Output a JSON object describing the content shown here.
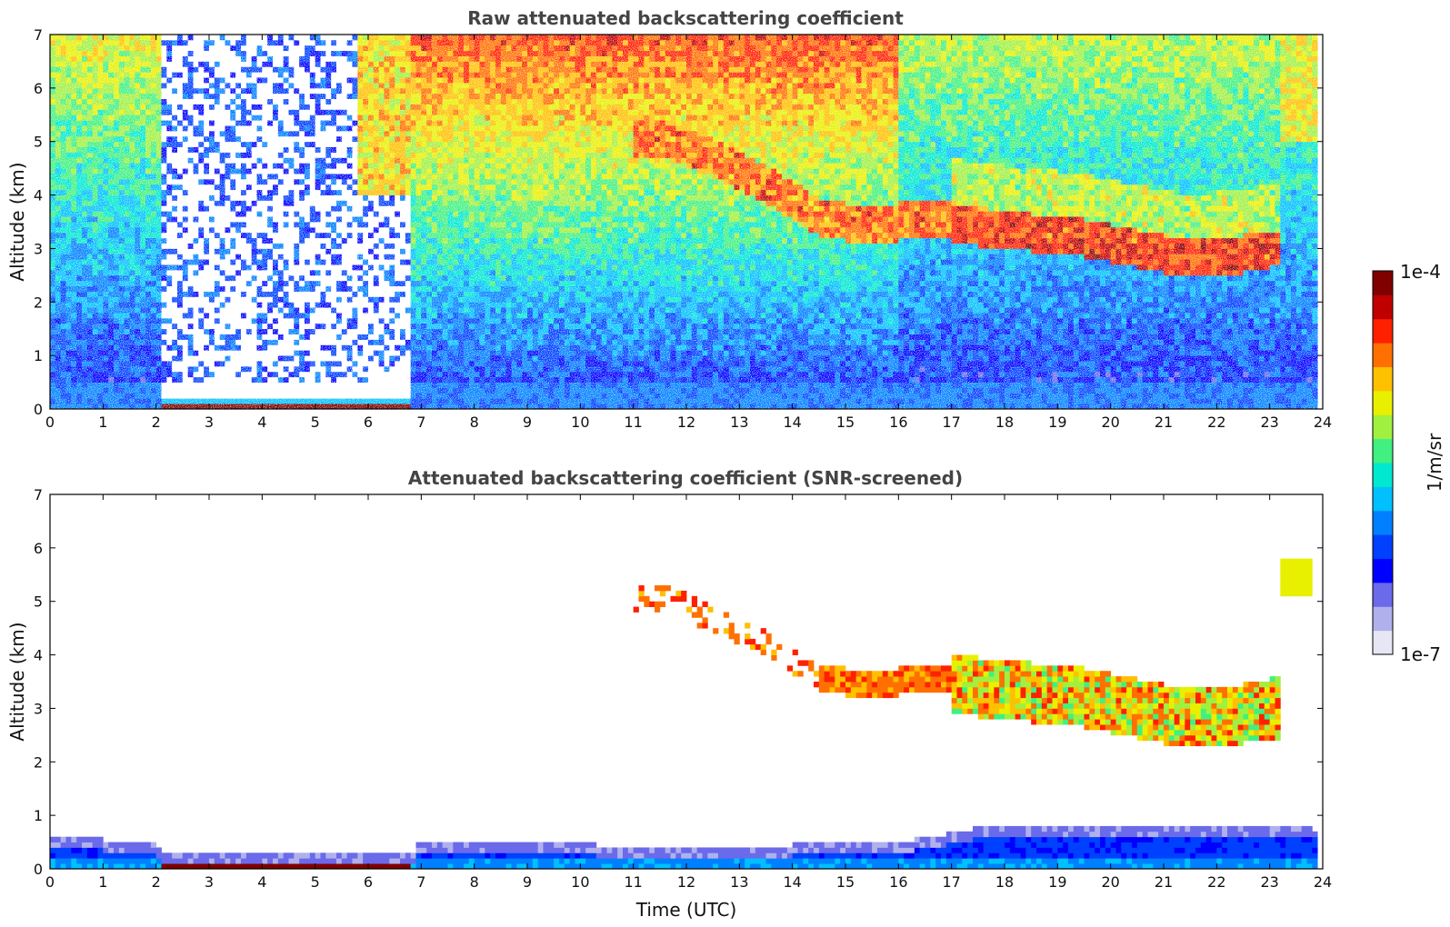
{
  "chart_data": [
    {
      "type": "heatmap",
      "title": "Raw attenuated backscattering coefficient",
      "xlabel": "",
      "ylabel": "Altitude (km)",
      "xlim": [
        0,
        24
      ],
      "ylim": [
        0,
        7
      ],
      "x_ticks": [
        "0",
        "1",
        "2",
        "3",
        "4",
        "5",
        "6",
        "7",
        "8",
        "9",
        "10",
        "11",
        "12",
        "13",
        "14",
        "15",
        "16",
        "17",
        "18",
        "19",
        "20",
        "21",
        "22",
        "23",
        "24"
      ],
      "y_ticks": [
        "0",
        "1",
        "2",
        "3",
        "4",
        "5",
        "6",
        "7"
      ],
      "features": {
        "surface_layer_top_km": 0.5,
        "instrument_gap_hours": [
          2.1,
          6.85
        ],
        "elevated_layer": [
          {
            "t": 11.5,
            "alt_km": 5.1
          },
          {
            "t": 12.5,
            "alt_km": 4.7
          },
          {
            "t": 13.5,
            "alt_km": 4.2
          },
          {
            "t": 14.5,
            "alt_km": 3.6
          },
          {
            "t": 15.5,
            "alt_km": 3.4
          },
          {
            "t": 16.5,
            "alt_km": 3.6
          },
          {
            "t": 17.5,
            "alt_km": 3.4
          },
          {
            "t": 18.5,
            "alt_km": 3.3
          },
          {
            "t": 19.5,
            "alt_km": 3.2
          },
          {
            "t": 20.5,
            "alt_km": 3.0
          },
          {
            "t": 21.5,
            "alt_km": 2.8
          },
          {
            "t": 22.5,
            "alt_km": 2.9
          },
          {
            "t": 23.0,
            "alt_km": 3.0
          }
        ]
      }
    },
    {
      "type": "heatmap",
      "title": "Attenuated backscattering coefficient (SNR-screened)",
      "xlabel": "Time (UTC)",
      "ylabel": "Altitude (km)",
      "xlim": [
        0,
        24
      ],
      "ylim": [
        0,
        7
      ],
      "x_ticks": [
        "0",
        "1",
        "2",
        "3",
        "4",
        "5",
        "6",
        "7",
        "8",
        "9",
        "10",
        "11",
        "12",
        "13",
        "14",
        "15",
        "16",
        "17",
        "18",
        "19",
        "20",
        "21",
        "22",
        "23",
        "24"
      ],
      "y_ticks": [
        "0",
        "1",
        "2",
        "3",
        "4",
        "5",
        "6",
        "7"
      ],
      "features": {
        "boundary_layer_top_km": [
          {
            "t": 0,
            "v": 0.6
          },
          {
            "t": 2,
            "v": 0.5
          },
          {
            "t": 2.1,
            "v": 0.35
          },
          {
            "t": 6.85,
            "v": 0.25
          },
          {
            "t": 7,
            "v": 0.55
          },
          {
            "t": 12,
            "v": 0.4
          },
          {
            "t": 16,
            "v": 0.5
          },
          {
            "t": 18,
            "v": 0.85
          },
          {
            "t": 21,
            "v": 0.85
          },
          {
            "t": 23.8,
            "v": 0.75
          }
        ]
      }
    }
  ],
  "colorbar": {
    "label": "1/m/sr",
    "max_label": "1e-4",
    "min_label": "1e-7",
    "scale": "log",
    "colormap": [
      "#e6e6f5",
      "#b0b0ec",
      "#6a6aea",
      "#0000ff",
      "#0040ff",
      "#0080ff",
      "#00c0ff",
      "#00e8d0",
      "#40f080",
      "#a0f040",
      "#e8f000",
      "#ffc000",
      "#ff7000",
      "#ff2000",
      "#c00000",
      "#800000"
    ]
  }
}
